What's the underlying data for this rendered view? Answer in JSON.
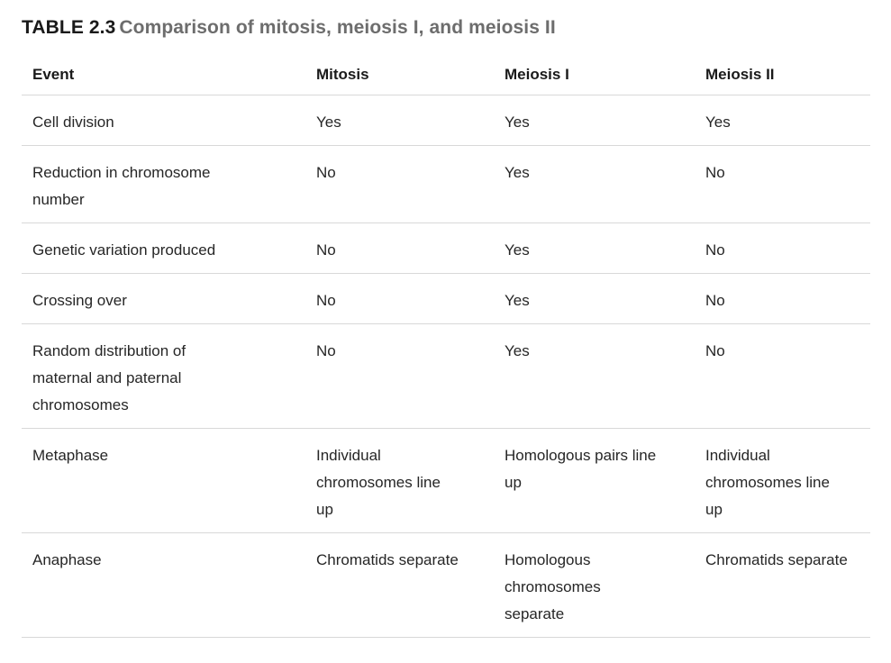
{
  "title": {
    "label": "TABLE 2.3",
    "text": "Comparison of mitosis, meiosis I, and meiosis II"
  },
  "table": {
    "headers": [
      "Event",
      "Mitosis",
      "Meiosis I",
      "Meiosis II"
    ],
    "rows": [
      {
        "cells": [
          "Cell division",
          "Yes",
          "Yes",
          "Yes"
        ]
      },
      {
        "cells": [
          "Reduction in chromosome\nnumber",
          "No",
          "Yes",
          "No"
        ]
      },
      {
        "cells": [
          "Genetic variation produced",
          "No",
          "Yes",
          "No"
        ]
      },
      {
        "cells": [
          "Crossing over",
          "No",
          "Yes",
          "No"
        ]
      },
      {
        "cells": [
          "Random distribution of\nmaternal and paternal\nchromosomes",
          "No",
          "Yes",
          "No"
        ]
      },
      {
        "cells": [
          "Metaphase",
          "Individual\nchromosomes line\nup",
          "Homologous pairs line\nup",
          "Individual\nchromosomes line\nup"
        ]
      },
      {
        "cells": [
          "Anaphase",
          "Chromatids separate",
          "Homologous\nchromosomes\nseparate",
          "Chromatids separate"
        ]
      }
    ]
  },
  "colors": {
    "title_label": "#1a1a1a",
    "title_text": "#6d6d6d",
    "header_text": "#1a1a1a",
    "body_text": "#262626",
    "divider": "#d8d8d8",
    "background": "#ffffff"
  }
}
